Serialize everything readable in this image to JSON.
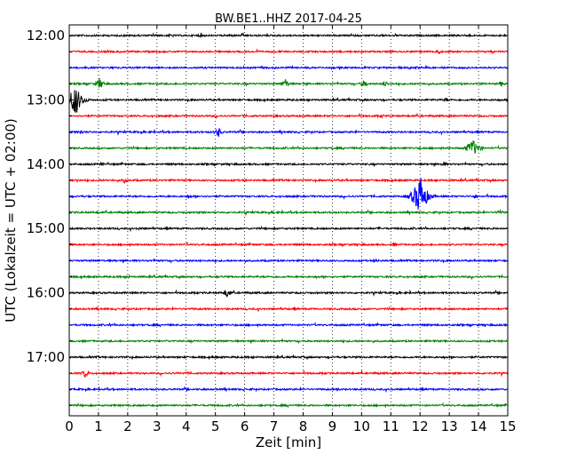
{
  "chart_data": {
    "type": "line",
    "title": "BW.BE1..HHZ 2017-04-25",
    "xlabel": "Zeit  [min]",
    "ylabel": "UTC (Lokalzeit = UTC + 02:00)",
    "xlim": [
      0,
      15
    ],
    "x_ticks": [
      "0",
      "1",
      "2",
      "3",
      "4",
      "5",
      "6",
      "7",
      "8",
      "9",
      "10",
      "11",
      "12",
      "13",
      "14",
      "15"
    ],
    "y_ticks": [
      "12:00",
      "13:00",
      "14:00",
      "15:00",
      "16:00",
      "17:00"
    ],
    "grid": "vertical dotted lines at each minute",
    "trace_colors": [
      "#000000",
      "#ff0000",
      "#0000ff",
      "#008000"
    ],
    "trace_interval_min": 15,
    "series": [
      {
        "start": "12:00",
        "color": "#000000",
        "events": [
          [
            3.5,
            2
          ],
          [
            4.5,
            2
          ],
          [
            5.5,
            1.5
          ],
          [
            10.7,
            1.5
          ]
        ]
      },
      {
        "start": "12:15",
        "color": "#ff0000",
        "events": [
          [
            12.6,
            3
          ]
        ]
      },
      {
        "start": "12:30",
        "color": "#0000ff",
        "events": [
          [
            1.5,
            1.5
          ],
          [
            11.9,
            1.5
          ]
        ]
      },
      {
        "start": "12:45",
        "color": "#008000",
        "events": [
          [
            1.05,
            6
          ],
          [
            7.4,
            5
          ],
          [
            10.1,
            4
          ],
          [
            10.8,
            3
          ],
          [
            14.8,
            3
          ]
        ]
      },
      {
        "start": "13:00",
        "color": "#000000",
        "events": [
          [
            0.2,
            15
          ],
          [
            12.9,
            2
          ]
        ]
      },
      {
        "start": "13:15",
        "color": "#ff0000",
        "events": [
          [
            10.7,
            2
          ]
        ]
      },
      {
        "start": "13:30",
        "color": "#0000ff",
        "events": [
          [
            0.4,
            2.5
          ],
          [
            5.1,
            5
          ]
        ]
      },
      {
        "start": "13:45",
        "color": "#008000",
        "events": [
          [
            13.8,
            8
          ]
        ]
      },
      {
        "start": "14:00",
        "color": "#000000",
        "events": [
          [
            1.1,
            2
          ],
          [
            12.8,
            2.5
          ]
        ]
      },
      {
        "start": "14:15",
        "color": "#ff0000",
        "events": [
          [
            0.3,
            2
          ],
          [
            1.9,
            2.5
          ]
        ]
      },
      {
        "start": "14:30",
        "color": "#0000ff",
        "events": [
          [
            12.0,
            20
          ],
          [
            4.1,
            2
          ],
          [
            13.9,
            2
          ]
        ]
      },
      {
        "start": "14:45",
        "color": "#008000",
        "events": [
          [
            14.7,
            3
          ]
        ]
      },
      {
        "start": "15:00",
        "color": "#000000",
        "events": [
          [
            2.4,
            1.5
          ],
          [
            10.6,
            1.2
          ]
        ]
      },
      {
        "start": "15:15",
        "color": "#ff0000",
        "events": [
          [
            11.1,
            2
          ]
        ]
      },
      {
        "start": "15:30",
        "color": "#0000ff",
        "events": [
          [
            10.5,
            2
          ]
        ]
      },
      {
        "start": "15:45",
        "color": "#008000",
        "events": [
          [
            2.0,
            2
          ]
        ]
      },
      {
        "start": "16:00",
        "color": "#000000",
        "events": [
          [
            5.4,
            5
          ]
        ]
      },
      {
        "start": "16:15",
        "color": "#ff0000",
        "events": [
          [
            4.0,
            1
          ]
        ]
      },
      {
        "start": "16:30",
        "color": "#0000ff",
        "events": [
          [
            1.4,
            1
          ]
        ]
      },
      {
        "start": "16:45",
        "color": "#008000",
        "events": [
          [
            12.5,
            1.5
          ]
        ]
      },
      {
        "start": "17:00",
        "color": "#000000",
        "events": [
          [
            4.9,
            1.5
          ]
        ]
      },
      {
        "start": "17:15",
        "color": "#ff0000",
        "events": [
          [
            0.55,
            4
          ],
          [
            4.0,
            1.5
          ]
        ]
      },
      {
        "start": "17:30",
        "color": "#0000ff",
        "events": [
          [
            9.2,
            1.5
          ]
        ]
      },
      {
        "start": "17:45",
        "color": "#008000",
        "events": [
          [
            3.0,
            1
          ]
        ]
      }
    ]
  }
}
